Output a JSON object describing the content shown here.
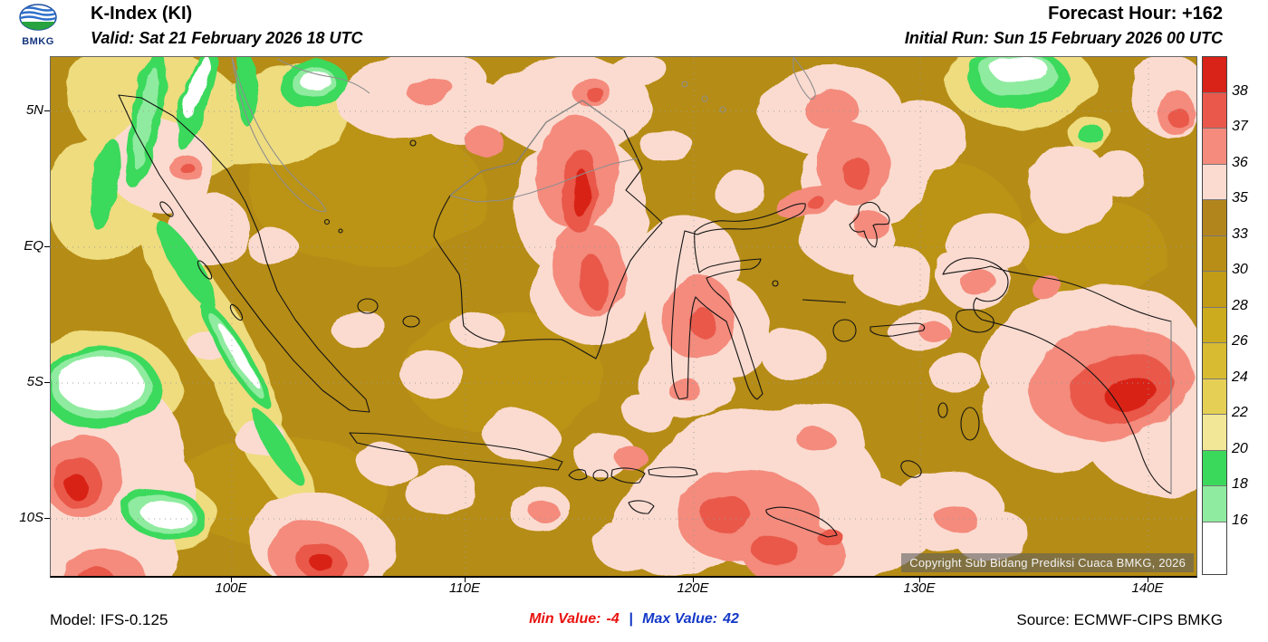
{
  "header": {
    "logo_text": "BMKG",
    "title": "K-Index (KI)",
    "valid_line": "Valid: Sat 21 February 2026 18 UTC",
    "forecast_hour": "Forecast Hour: +162",
    "initial_run": "Initial Run: Sun 15 February 2026 00 UTC"
  },
  "map": {
    "lat_ticks": [
      "5N",
      "EQ",
      "5S",
      "10S"
    ],
    "lon_ticks": [
      "100E",
      "110E",
      "120E",
      "130E",
      "140E"
    ],
    "copyright": "Copyright Sub Bidang Prediksi Cuaca BMKG, 2026"
  },
  "colorbar": {
    "boundary_labels": [
      "38",
      "37",
      "36",
      "35",
      "33",
      "30",
      "28",
      "26",
      "24",
      "22",
      "20",
      "18",
      "16"
    ],
    "segment_colors_top_to_bottom": [
      "#d92218",
      "#e9584a",
      "#f48b7d",
      "#fbdbd0",
      "#b2851c",
      "#b98e16",
      "#c29b17",
      "#ccab1f",
      "#d8bb30",
      "#e5cf55",
      "#f2e796",
      "#3bd95b",
      "#8feb9f",
      "#ffffff"
    ]
  },
  "footer": {
    "model": "Model: IFS-0.125",
    "min_label": "Min Value:",
    "min_value": "-4",
    "separator": "|",
    "max_label": "Max Value:",
    "max_value": "42",
    "source": "Source: ECMWF-CIPS BMKG",
    "min_color": "#e8110e",
    "max_color": "#1539c7"
  },
  "chart_data": {
    "type": "heatmap",
    "title": "K-Index (KI) forecast over Indonesia",
    "valid_time": "Sat 21 February 2026 18 UTC",
    "initial_run": "Sun 15 February 2026 00 UTC",
    "forecast_hour": 162,
    "model": "IFS-0.125",
    "source": "ECMWF-CIPS BMKG",
    "lat_ticks": [
      "5N",
      "EQ",
      "5S",
      "10S"
    ],
    "lon_ticks": [
      "100E",
      "110E",
      "120E",
      "130E",
      "140E"
    ],
    "scale_boundaries": [
      16,
      18,
      20,
      22,
      24,
      26,
      28,
      30,
      33,
      35,
      36,
      37,
      38
    ],
    "min_value": -4,
    "max_value": 42,
    "dominant_band": "30-35 (dark gold) over most seas; 35-38 (pink/red) convective areas; 16-20 (green/white) minima NW Sumatra and Pacific edge"
  }
}
